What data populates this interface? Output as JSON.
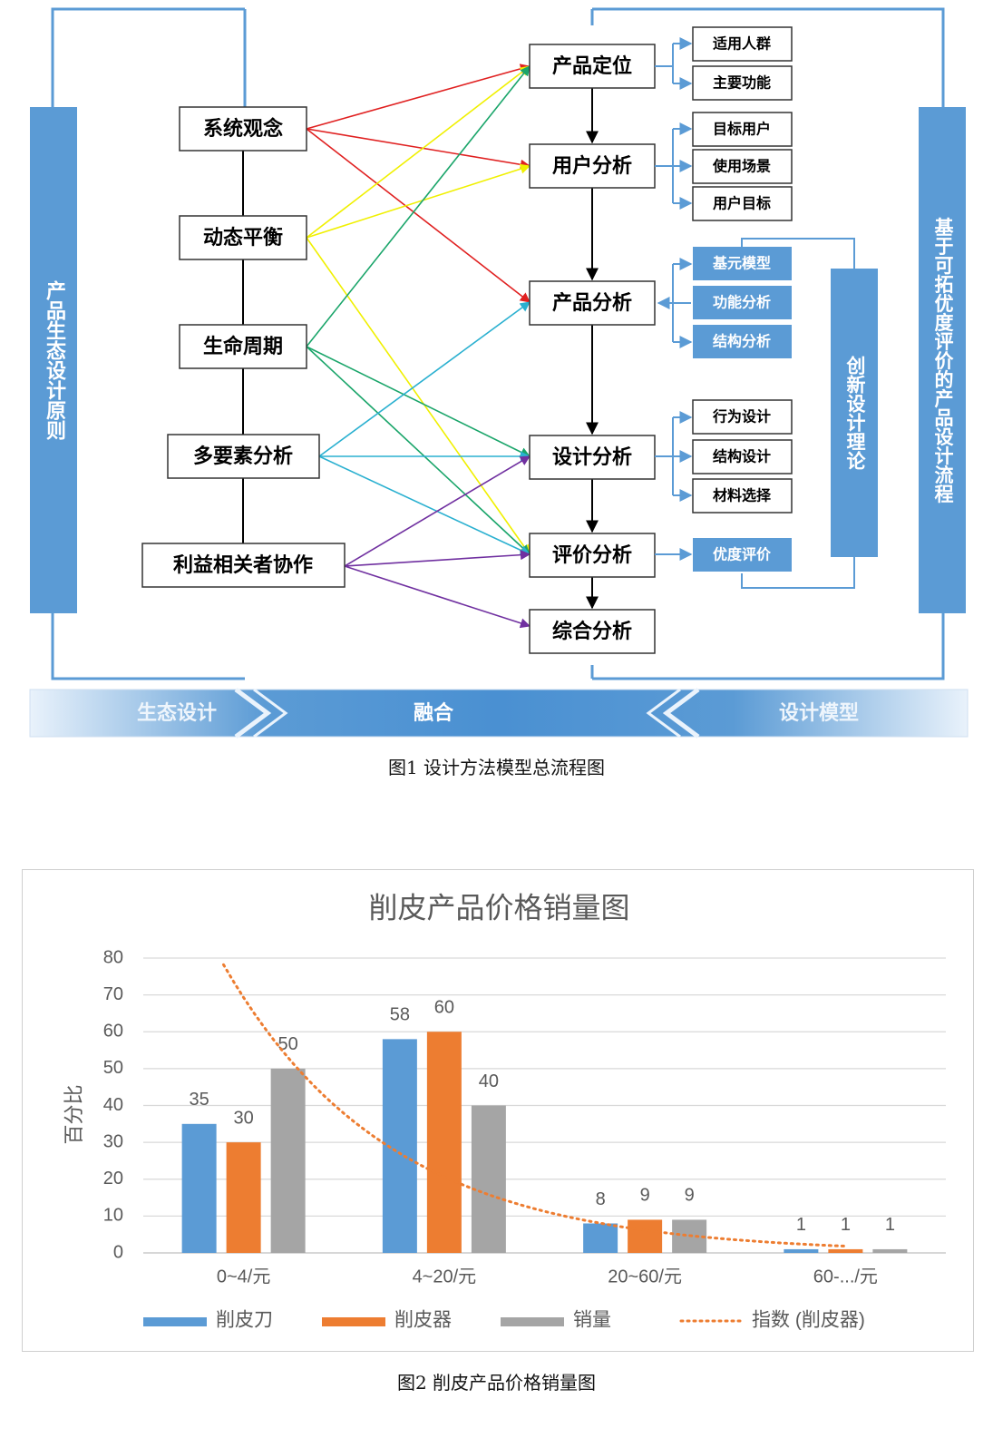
{
  "figure1": {
    "caption": "图1 设计方法模型总流程图",
    "left_vertical_label": "产品生态设计原则",
    "right_vertical_label": "基于可拓优度评价的产品设计流程",
    "innovation_label": "创新设计理论",
    "principles": [
      "系统观念",
      "动态平衡",
      "生命周期",
      "多要素分析",
      "利益相关者协作"
    ],
    "steps": [
      "产品定位",
      "用户分析",
      "产品分析",
      "设计分析",
      "评价分析",
      "综合分析"
    ],
    "details": {
      "positioning": [
        "适用人群",
        "主要功能"
      ],
      "user": [
        "目标用户",
        "使用场景",
        "用户目标"
      ],
      "product": [
        "基元模型",
        "功能分析",
        "结构分析"
      ],
      "design": [
        "行为设计",
        "结构设计",
        "材料选择"
      ],
      "evaluation": [
        "优度评价"
      ]
    },
    "bottom_band": {
      "left": "生态设计",
      "center": "融合",
      "right": "设计模型"
    },
    "colors": {
      "blue": "#5b9bd5",
      "red": "#e02020",
      "yellow": "#ffff00",
      "green": "#1aa56a",
      "cyan": "#2ab0d0",
      "purple": "#7030a0"
    }
  },
  "figure2": {
    "caption": "图2 削皮产品价格销量图",
    "chart_data": {
      "type": "bar",
      "title": "削皮产品价格销量图",
      "xlabel": "",
      "ylabel": "百分比",
      "ylim": [
        0,
        80
      ],
      "yticks": [
        0,
        10,
        20,
        30,
        40,
        50,
        60,
        70,
        80
      ],
      "categories": [
        "0~4/元",
        "4~20/元",
        "20~60/元",
        "60-.../元"
      ],
      "series": [
        {
          "name": "削皮刀",
          "values": [
            35,
            58,
            8,
            1
          ],
          "color": "#5b9bd5"
        },
        {
          "name": "削皮器",
          "values": [
            30,
            60,
            9,
            1
          ],
          "color": "#ed7d31"
        },
        {
          "name": "销量",
          "values": [
            50,
            40,
            9,
            1
          ],
          "color": "#a5a5a5"
        }
      ],
      "trendline": {
        "name": "指数 (削皮器)",
        "type": "exponential",
        "of_series": "削皮器",
        "color": "#ed7d31",
        "style": "dotted"
      },
      "grid": true,
      "legend_position": "bottom"
    }
  }
}
